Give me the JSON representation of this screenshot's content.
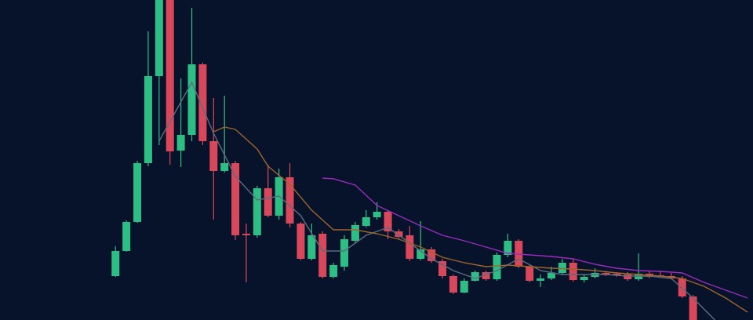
{
  "chart_data": {
    "type": "candlestick",
    "xlim": [
      -10.6,
      58.5
    ],
    "ylim": [
      0,
      408
    ],
    "up_color": "#2ebd85",
    "down_color": "#d9475b",
    "open": [
      56,
      88,
      125,
      200,
      311,
      408,
      216,
      236,
      326,
      228,
      190,
      200,
      110,
      108,
      168,
      133,
      182,
      123,
      78,
      110,
      55,
      68,
      101,
      120,
      131,
      138,
      113,
      108,
      78,
      90,
      75,
      56,
      35,
      50,
      61,
      52,
      83,
      101,
      68,
      50,
      53,
      60,
      73,
      51,
      55,
      60,
      59,
      58,
      52,
      59,
      57,
      56,
      53,
      30
    ],
    "high": [
      94,
      127,
      203,
      368,
      408,
      408,
      308,
      398,
      328,
      283,
      286,
      203,
      123,
      171,
      198,
      193,
      200,
      125,
      123,
      113,
      73,
      108,
      125,
      140,
      150,
      140,
      116,
      120,
      126,
      93,
      78,
      58,
      53,
      63,
      63,
      86,
      110,
      103,
      70,
      58,
      68,
      78,
      78,
      58,
      66,
      63,
      61,
      61,
      85,
      62,
      63,
      60,
      56,
      32
    ],
    "low": [
      55,
      87,
      124,
      196,
      223,
      198,
      195,
      228,
      223,
      128,
      188,
      102,
      48,
      105,
      131,
      128,
      118,
      76,
      76,
      53,
      53,
      63,
      98,
      118,
      128,
      103,
      104,
      75,
      76,
      73,
      53,
      33,
      34,
      49,
      50,
      50,
      80,
      66,
      48,
      42,
      51,
      58,
      49,
      48,
      53,
      56,
      55,
      50,
      50,
      53,
      54,
      52,
      28,
      0
    ],
    "close": [
      88,
      125,
      200,
      311,
      408,
      215,
      236,
      326,
      228,
      190,
      200,
      108,
      108,
      168,
      133,
      182,
      123,
      78,
      108,
      55,
      70,
      103,
      121,
      131,
      138,
      113,
      106,
      78,
      90,
      75,
      56,
      35,
      50,
      61,
      52,
      83,
      101,
      68,
      50,
      53,
      60,
      73,
      51,
      55,
      60,
      58,
      57,
      52,
      59,
      55,
      56,
      53,
      30,
      0
    ],
    "lines": [
      {
        "color": "#5f6b7d",
        "x": [
          4,
          7,
          9,
          11,
          13,
          15,
          17,
          19,
          21,
          23,
          25,
          27,
          29,
          31,
          33,
          35,
          37,
          39,
          41,
          43,
          45,
          47,
          49,
          51,
          53,
          55
        ],
        "values": [
          228,
          303,
          238,
          183,
          153,
          158,
          133,
          88,
          88,
          108,
          118,
          98,
          78,
          63,
          53,
          63,
          78,
          63,
          58,
          58,
          58,
          56,
          56,
          53,
          28,
          0
        ]
      },
      {
        "color": "#a0642a",
        "x": [
          9,
          10,
          11,
          13,
          14,
          16,
          18,
          20,
          22,
          24,
          26,
          28,
          30,
          32,
          34,
          36,
          38,
          40,
          42,
          44,
          46,
          48,
          50,
          52,
          54,
          56,
          58
        ],
        "values": [
          240,
          246,
          243,
          218,
          196,
          173,
          140,
          115,
          115,
          110,
          103,
          93,
          80,
          73,
          68,
          70,
          68,
          66,
          65,
          63,
          60,
          58,
          56,
          53,
          43,
          28,
          10
        ]
      },
      {
        "color": "#9b2bbd",
        "x": [
          19,
          20,
          22,
          24,
          26,
          28,
          30,
          32,
          34,
          36,
          38,
          40,
          42,
          44,
          46,
          48,
          50,
          52,
          54,
          56,
          58
        ],
        "values": [
          181,
          180,
          172,
          146,
          133,
          120,
          108,
          101,
          93,
          85,
          83,
          81,
          78,
          71,
          66,
          63,
          62,
          60,
          48,
          38,
          28
        ]
      }
    ]
  }
}
